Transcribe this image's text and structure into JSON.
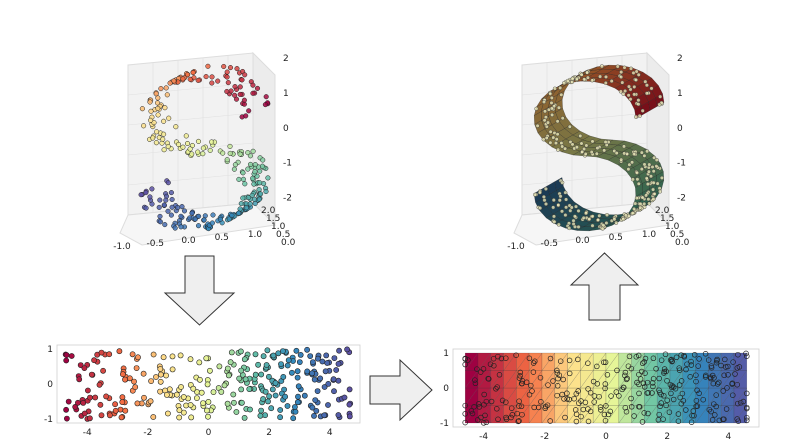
{
  "figure": {
    "panels": [
      {
        "id": "scurve-3d-points",
        "kind": "3d-scatter",
        "x_ticks": [
          "-1.0",
          "-0.5",
          "0.0",
          "0.5",
          "1.0"
        ],
        "y_ticks": [
          "0.0",
          "0.5",
          "1.0",
          "1.5",
          "2.0"
        ],
        "z_ticks": [
          "2",
          "1",
          "0",
          "-1",
          "-2"
        ]
      },
      {
        "id": "scurve-3d-mesh",
        "kind": "3d-triangulated-surface",
        "x_ticks": [
          "-1.0",
          "-0.5",
          "0.0",
          "0.5",
          "1.0"
        ],
        "y_ticks": [
          "0.0",
          "0.5",
          "1.0",
          "1.5",
          "2.0"
        ],
        "z_ticks": [
          "2",
          "1",
          "0",
          "-1",
          "-2"
        ]
      },
      {
        "id": "embedding-2d-points",
        "kind": "2d-scatter",
        "x_ticks": [
          "-4",
          "-2",
          "0",
          "2",
          "4"
        ],
        "y_ticks": [
          "1",
          "0",
          "-1"
        ]
      },
      {
        "id": "embedding-2d-mesh",
        "kind": "2d-triangulation",
        "x_ticks": [
          "-4",
          "-2",
          "0",
          "2",
          "4"
        ],
        "y_ticks": [
          "1",
          "0",
          "-1"
        ]
      }
    ],
    "arrows": [
      {
        "id": "arrow-down",
        "direction": "down",
        "from": "scurve-3d-points",
        "to": "embedding-2d-points"
      },
      {
        "id": "arrow-right",
        "direction": "right",
        "from": "embedding-2d-points",
        "to": "embedding-2d-mesh"
      },
      {
        "id": "arrow-up",
        "direction": "up",
        "from": "embedding-2d-mesh",
        "to": "scurve-3d-mesh"
      }
    ],
    "colormap": "Spectral",
    "colors": {
      "arrow_fill": "#efefef",
      "arrow_stroke": "#333333",
      "point_edge": "#222222",
      "pane": "#f2f2f2",
      "grid": "#e0e0e0"
    }
  }
}
